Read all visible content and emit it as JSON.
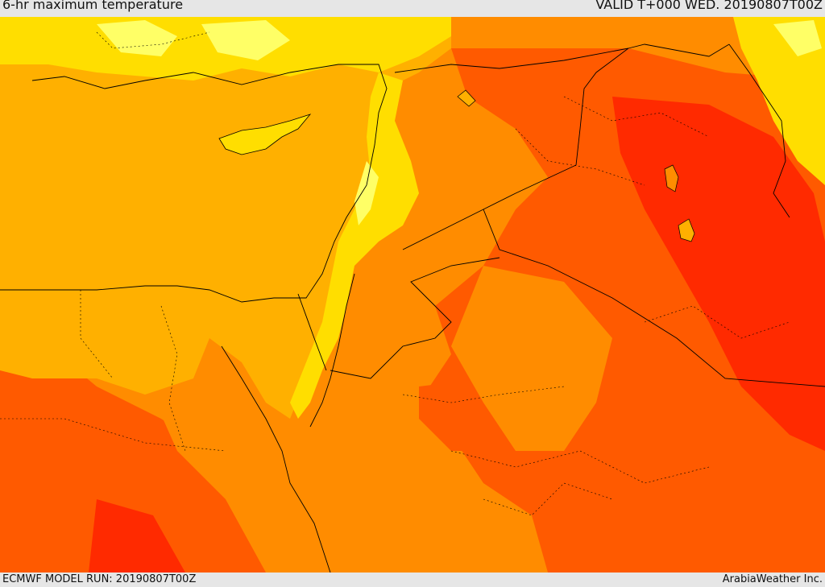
{
  "header": {
    "title": "6-hr maximum temperature",
    "valid": "VALID T+000 WED. 20190807T00Z"
  },
  "footer": {
    "model_run": "ECMWF MODEL RUN: 20190807T00Z",
    "credit": "ArabiaWeather Inc."
  },
  "colors": {
    "light_yellow": "#ffff66",
    "yellow": "#ffde00",
    "gold": "#ffb000",
    "orange": "#ff8c00",
    "orange_red": "#ff5a00",
    "red": "#ff2a00"
  }
}
